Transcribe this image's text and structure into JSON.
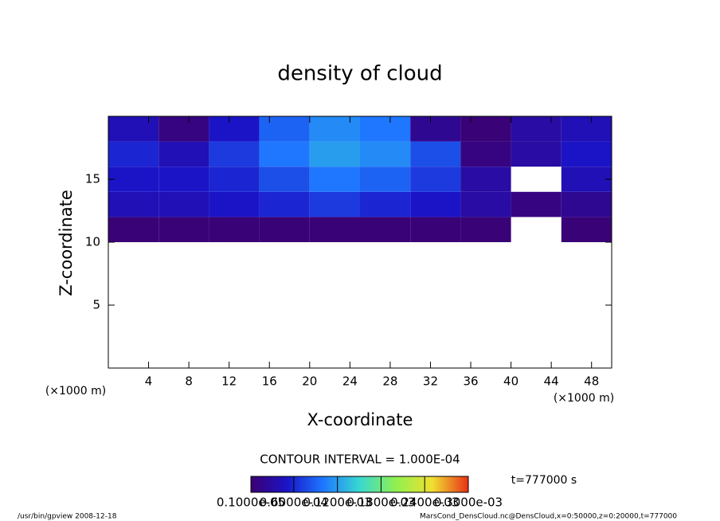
{
  "chart_data": {
    "type": "heatmap",
    "title": "density of cloud",
    "x_label": "X-coordinate",
    "y_label": "Z-coordinate",
    "x_unit": "(×1000 m)",
    "y_unit": "(×1000 m)",
    "x": [
      2.5,
      7.5,
      12.5,
      17.5,
      22.5,
      27.5,
      32.5,
      37.5,
      42.5,
      47.5
    ],
    "y": [
      11,
      13,
      15,
      17,
      19
    ],
    "values": [
      [
        5e-06,
        5e-06,
        5e-06,
        5e-06,
        5e-06,
        5e-06,
        5e-06,
        5e-06,
        null,
        5e-06
      ],
      [
        4e-05,
        4e-05,
        5e-05,
        6e-05,
        7e-05,
        6e-05,
        5e-05,
        3e-05,
        1e-05,
        2e-05
      ],
      [
        5e-05,
        5e-05,
        6e-05,
        8e-05,
        0.0001,
        9e-05,
        7e-05,
        3e-05,
        null,
        4e-05
      ],
      [
        6e-05,
        4e-05,
        7e-05,
        0.0001,
        0.00012,
        0.00011,
        8e-05,
        1e-05,
        3e-05,
        5e-05
      ],
      [
        4e-05,
        1e-05,
        5e-05,
        9e-05,
        0.00011,
        0.0001,
        2e-05,
        5e-06,
        3e-05,
        4e-05
      ]
    ],
    "xlim": [
      0,
      50
    ],
    "ylim": [
      0,
      20
    ],
    "xticks": [
      4,
      8,
      12,
      16,
      20,
      24,
      28,
      32,
      36,
      40,
      44,
      48
    ],
    "yticks": [
      5,
      10,
      15
    ],
    "clim": [
      1e-06,
      0.0003
    ],
    "colors": [
      "#3c0070",
      "#1a14c8",
      "#1e78ff",
      "#38d8d0",
      "#90f050",
      "#f0e030",
      "#e83018"
    ],
    "cticks": [
      {
        "value": 1e-06,
        "label": "0.1000e-05"
      },
      {
        "value": 6e-05,
        "label": "0.6000e-04"
      },
      {
        "value": 0.00012,
        "label": "0.1200e-03"
      },
      {
        "value": 0.00018,
        "label": "0.1800e-03"
      },
      {
        "value": 0.00024,
        "label": "0.2400e-03"
      },
      {
        "value": 0.0003,
        "label": "0.3000e-03"
      }
    ],
    "contour_note": "CONTOUR INTERVAL = 1.000E-04",
    "time_note": "t=777000 s",
    "footer_left": "/usr/bin/gpview  2008-12-18",
    "footer_right": "MarsCond_DensCloud.nc@DensCloud,x=0:50000,z=0:20000,t=777000"
  }
}
